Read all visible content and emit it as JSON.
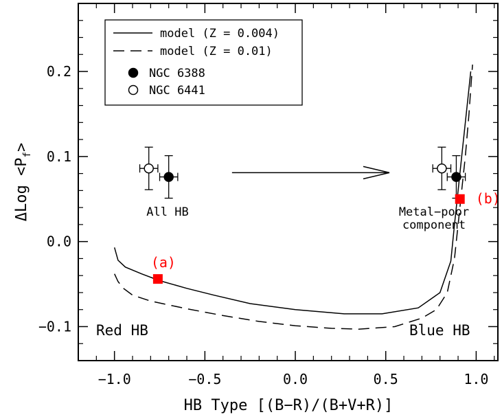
{
  "chart_data": {
    "type": "line",
    "xlabel": "HB Type [(B−R)/(B+V+R)]",
    "ylabel_main": "ΔLog <P",
    "ylabel_sub": "f",
    "ylabel_end": ">",
    "xlim": [
      -1.2,
      1.12
    ],
    "ylim": [
      -0.14,
      0.28
    ],
    "xticks": [
      -1.0,
      -0.5,
      0.0,
      0.5,
      1.0
    ],
    "xtick_labels": [
      "−1.0",
      "−0.5",
      "0.0",
      "0.5",
      "1.0"
    ],
    "yticks": [
      -0.1,
      0.0,
      0.1,
      0.2
    ],
    "ytick_labels": [
      "−0.1",
      "0.0",
      "0.1",
      "0.2"
    ],
    "grid": false,
    "legend_position": "top-left",
    "legend": [
      {
        "label": "model (Z = 0.004)",
        "style": "solid-line"
      },
      {
        "label": "model (Z = 0.01)",
        "style": "dashed-line"
      },
      {
        "label": "NGC 6388",
        "style": "filled-circle"
      },
      {
        "label": "NGC 6441",
        "style": "open-circle"
      }
    ],
    "series": [
      {
        "name": "model (Z = 0.004)",
        "style": "solid",
        "x": [
          -1.0,
          -0.98,
          -0.94,
          -0.85,
          -0.75,
          -0.6,
          -0.45,
          -0.25,
          0.0,
          0.27,
          0.48,
          0.68,
          0.8,
          0.86,
          0.88,
          0.9,
          0.92,
          0.94,
          0.96,
          0.97
        ],
        "y": [
          -0.007,
          -0.022,
          -0.03,
          -0.038,
          -0.046,
          -0.055,
          -0.063,
          -0.073,
          -0.08,
          -0.085,
          -0.085,
          -0.078,
          -0.06,
          -0.023,
          0.02,
          0.06,
          0.1,
          0.14,
          0.18,
          0.2
        ]
      },
      {
        "name": "model (Z = 0.01)",
        "style": "dashed",
        "x": [
          -1.0,
          -0.98,
          -0.95,
          -0.9,
          -0.8,
          -0.6,
          -0.4,
          -0.2,
          0.0,
          0.2,
          0.35,
          0.55,
          0.7,
          0.78,
          0.84,
          0.88,
          0.9,
          0.92,
          0.94,
          0.96,
          0.97,
          0.98
        ],
        "y": [
          -0.038,
          -0.047,
          -0.055,
          -0.063,
          -0.07,
          -0.079,
          -0.087,
          -0.094,
          -0.099,
          -0.102,
          -0.103,
          -0.1,
          -0.09,
          -0.08,
          -0.06,
          -0.02,
          0.02,
          0.06,
          0.1,
          0.15,
          0.18,
          0.208
        ]
      }
    ],
    "points": [
      {
        "name": "NGC 6441",
        "group": "all-hb",
        "marker": "open-circle",
        "x": -0.81,
        "y": 0.086,
        "xerr": 0.05,
        "yerr": 0.025
      },
      {
        "name": "NGC 6388",
        "group": "all-hb",
        "marker": "filled-circle",
        "x": -0.7,
        "y": 0.076,
        "xerr": 0.05,
        "yerr": 0.025
      },
      {
        "name": "NGC 6441",
        "group": "metal-poor",
        "marker": "open-circle",
        "x": 0.81,
        "y": 0.086,
        "xerr": 0.05,
        "yerr": 0.025
      },
      {
        "name": "NGC 6388",
        "group": "metal-poor",
        "marker": "filled-circle",
        "x": 0.89,
        "y": 0.076,
        "xerr": 0.05,
        "yerr": 0.025
      }
    ],
    "arrow": {
      "from": [
        -0.35,
        0.081
      ],
      "to": [
        0.52,
        0.081
      ]
    },
    "highlights": [
      {
        "label": "(a)",
        "x": -0.76,
        "y": -0.044,
        "color": "#ff0000"
      },
      {
        "label": "(b)",
        "x": 0.91,
        "y": 0.05,
        "color": "#ff0000"
      }
    ],
    "annotations": {
      "all_hb": "All HB",
      "metal_poor_line1": "Metal−poor",
      "metal_poor_line2": "component",
      "red_hb": "Red HB",
      "blue_hb": "Blue HB"
    }
  }
}
